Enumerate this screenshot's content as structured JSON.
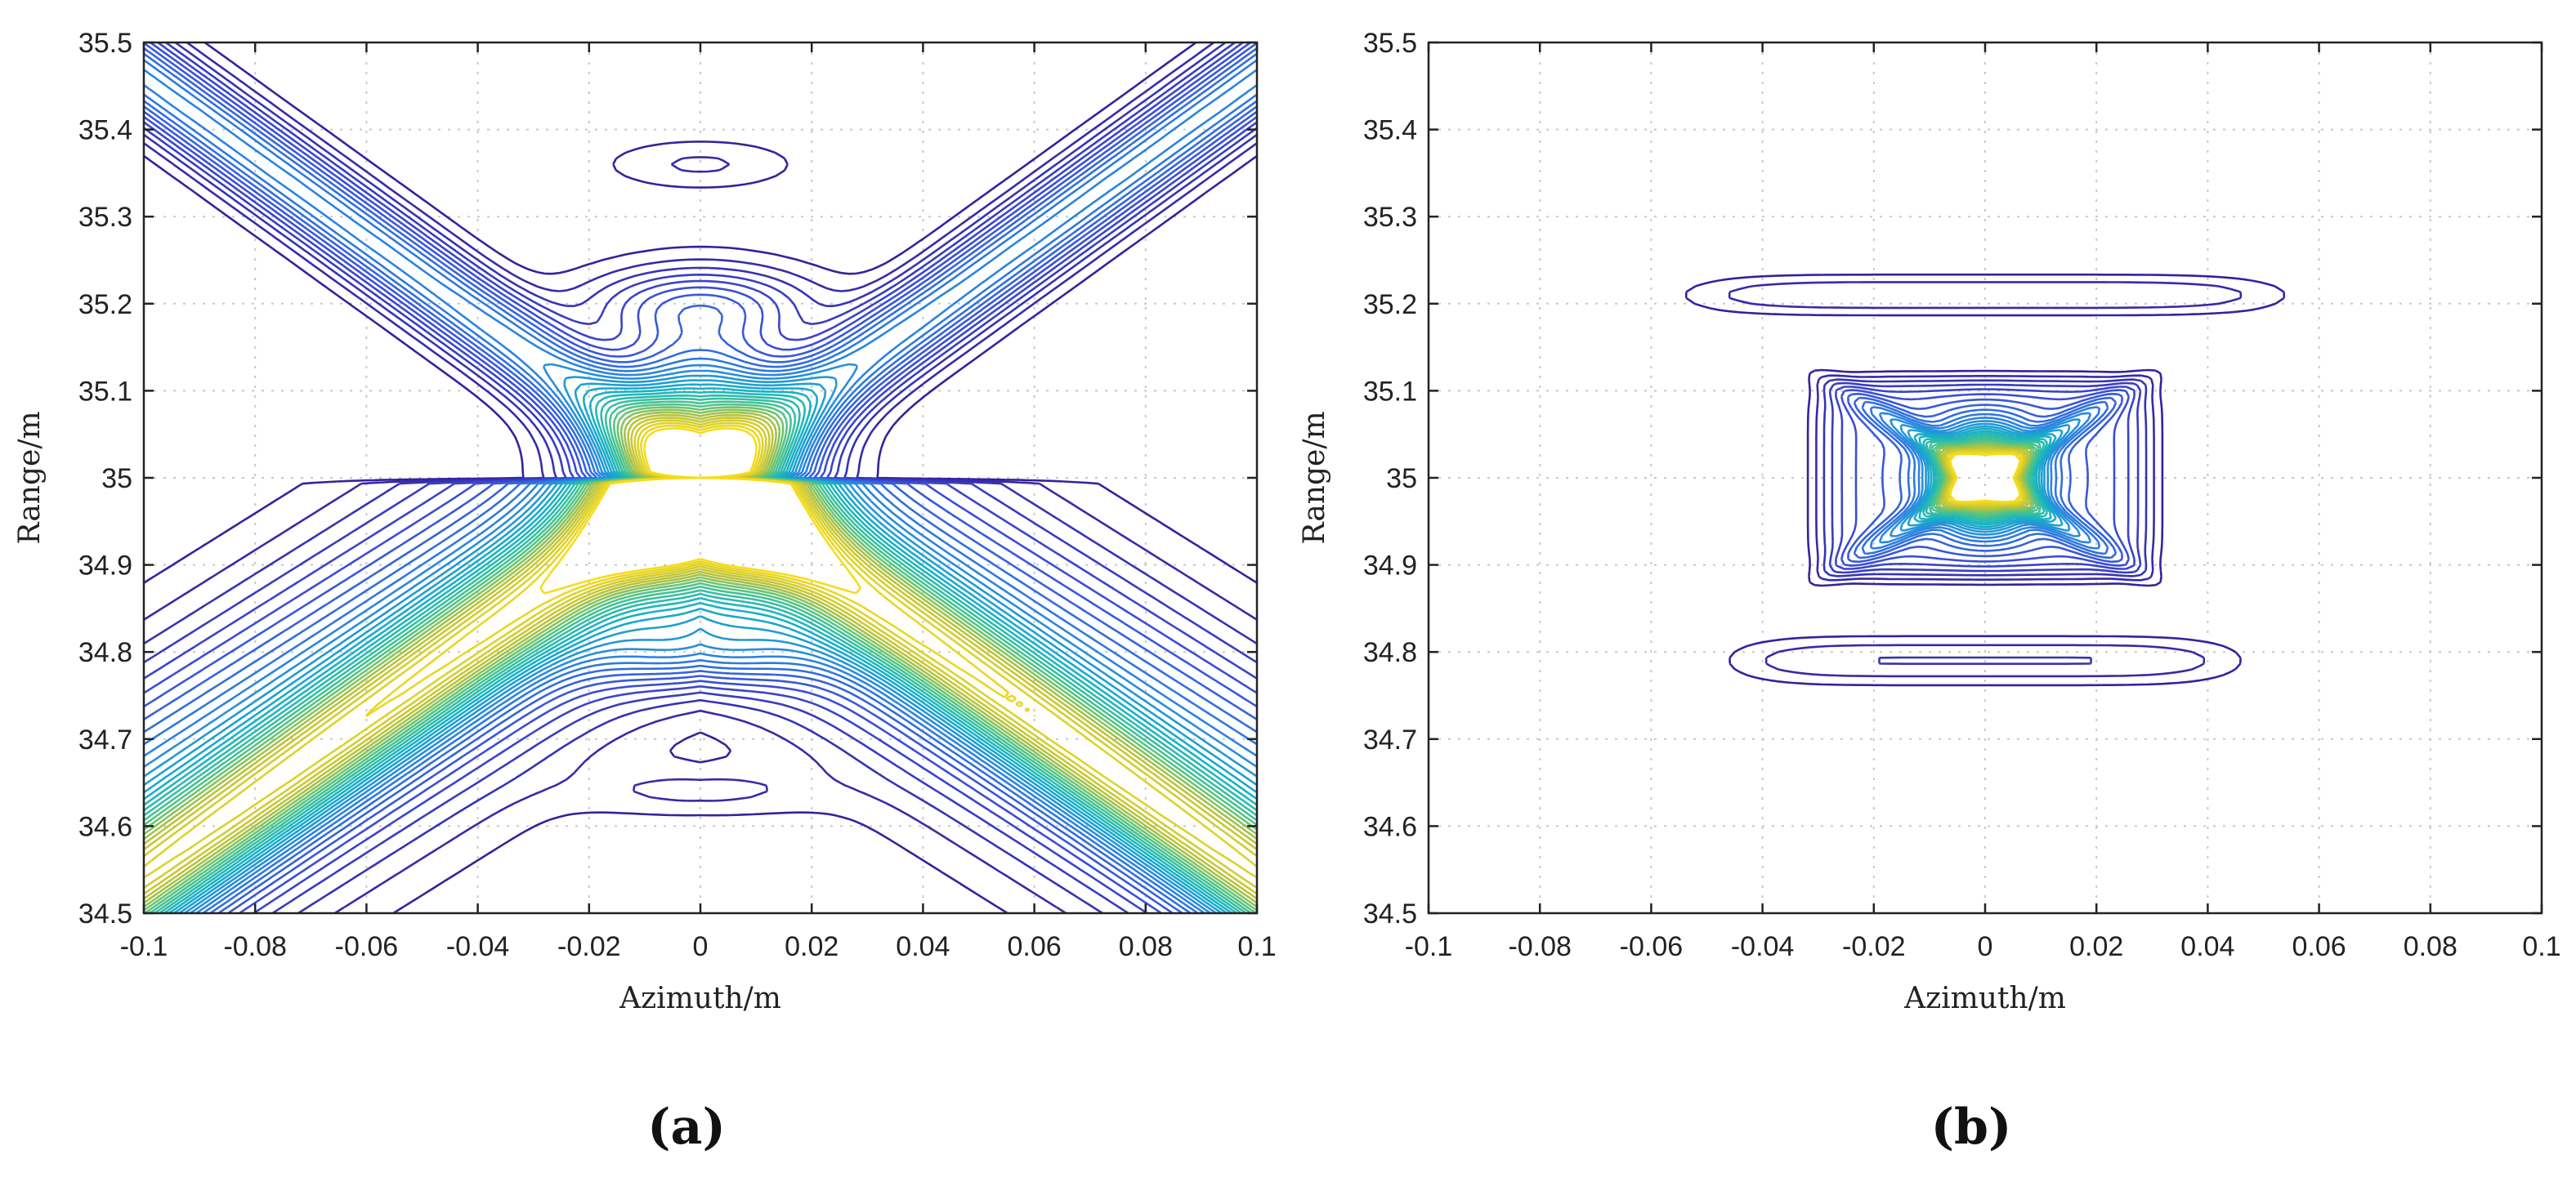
{
  "chart_data": [
    {
      "type": "contour",
      "panel_label": "(a)",
      "xlabel": "Azimuth/m",
      "ylabel": "Range/m",
      "xlim": [
        -0.1,
        0.1
      ],
      "ylim": [
        34.5,
        35.5
      ],
      "x_ticks": [
        "-0.1",
        "-0.08",
        "-0.06",
        "-0.04",
        "-0.02",
        "0",
        "0.02",
        "0.04",
        "0.06",
        "0.08",
        "0.1"
      ],
      "y_ticks": [
        "34.5",
        "34.6",
        "34.7",
        "34.8",
        "34.9",
        "35",
        "35.1",
        "35.2",
        "35.3",
        "35.4",
        "35.5"
      ],
      "grid": true,
      "colormap": "parula",
      "peak": {
        "x": 0,
        "y": 35.0
      },
      "description_free": true
    },
    {
      "type": "contour",
      "panel_label": "(b)",
      "xlabel": "Azimuth/m",
      "ylabel": "Range/m",
      "xlim": [
        -0.1,
        0.1
      ],
      "ylim": [
        34.5,
        35.5
      ],
      "x_ticks": [
        "-0.1",
        "-0.08",
        "-0.06",
        "-0.04",
        "-0.02",
        "0",
        "0.02",
        "0.04",
        "0.06",
        "0.08",
        "0.1"
      ],
      "y_ticks": [
        "34.5",
        "34.6",
        "34.7",
        "34.8",
        "34.9",
        "35",
        "35.1",
        "35.2",
        "35.3",
        "35.4",
        "35.5"
      ],
      "grid": true,
      "colormap": "parula",
      "peak": {
        "x": 0,
        "y": 35.0
      }
    }
  ],
  "colors": {
    "low": "#3b2bb0",
    "mid": "#1aa6b8",
    "high": "#f2d21b"
  }
}
